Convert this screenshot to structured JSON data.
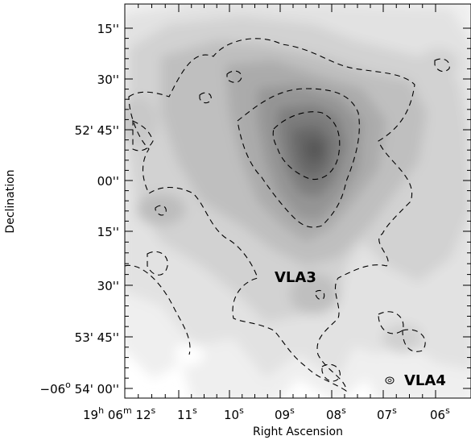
{
  "axes": {
    "xlabel": "Right Ascension",
    "ylabel": "Declination",
    "x_ticks": [
      {
        "h": "19",
        "m": "06",
        "s": "12",
        "sfx": "s",
        "full": true
      },
      {
        "s": "11"
      },
      {
        "s": "10"
      },
      {
        "s": "09"
      },
      {
        "s": "08"
      },
      {
        "s": "07"
      },
      {
        "s": "06"
      }
    ],
    "y_ticks": [
      {
        "label": "15''"
      },
      {
        "label": "30''"
      },
      {
        "prefix": "52' ",
        "label": "45''"
      },
      {
        "label": "00''"
      },
      {
        "label": "15''"
      },
      {
        "label": "30''"
      },
      {
        "prefix": "53' ",
        "label": "45''"
      },
      {
        "prefix": "−06",
        "deg": "o",
        "mid": " 54' ",
        "label": "00''"
      }
    ]
  },
  "sources": [
    {
      "name": "VLA3"
    },
    {
      "name": "VLA4"
    }
  ],
  "colors": {
    "levels": [
      "#f1f1f1",
      "#e3e3e3",
      "#d3d3d3",
      "#c1c1c1",
      "#aeaeae",
      "#989898",
      "#808080",
      "#6a6a6a",
      "#585858"
    ]
  }
}
